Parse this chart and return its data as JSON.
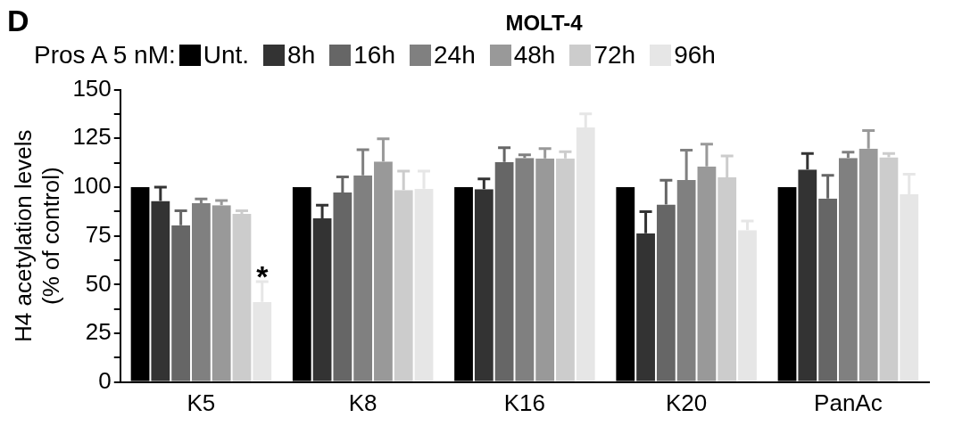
{
  "chart_data": {
    "type": "bar",
    "title": "MOLT-4",
    "ylabel": "H4 acetylation levels\n(% of control)",
    "legend_title": "Pros A 5 nM:",
    "legend": "top",
    "categories": [
      "K5",
      "K8",
      "K16",
      "K20",
      "PanAc"
    ],
    "series": [
      {
        "name": "Unt.",
        "color": "#000000",
        "values": [
          100,
          100,
          100,
          100,
          100
        ]
      },
      {
        "name": "8h",
        "color": "#333333",
        "values": [
          92.9,
          84,
          99,
          76.3,
          109
        ],
        "errors": [
          [
            92.9,
            100
          ],
          [
            84,
            90.8
          ],
          [
            99,
            104.2
          ],
          [
            76.3,
            87.4
          ],
          [
            109,
            117.3
          ]
        ]
      },
      {
        "name": "16h",
        "color": "#666666",
        "values": [
          80.5,
          97.3,
          112.9,
          91.1,
          94.2
        ],
        "errors": [
          [
            80.5,
            87.9
          ],
          [
            97.3,
            105.2
          ],
          [
            112.9,
            120.2
          ],
          [
            91.1,
            103.5
          ],
          [
            94.2,
            106
          ]
        ]
      },
      {
        "name": "24h",
        "color": "#808080",
        "values": [
          91.8,
          106,
          115,
          103.7,
          115
        ],
        "errors": [
          [
            91.8,
            94
          ],
          [
            106,
            119.2
          ],
          [
            115,
            116.6
          ],
          [
            103.7,
            119
          ],
          [
            115,
            117.9
          ]
        ]
      },
      {
        "name": "48h",
        "color": "#999999",
        "values": [
          90.8,
          113.1,
          114.7,
          110.6,
          119.8
        ],
        "errors": [
          [
            90.8,
            93.2
          ],
          [
            113.1,
            124.8
          ],
          [
            114.7,
            119.8
          ],
          [
            110.6,
            122.1
          ],
          [
            119.8,
            129
          ]
        ]
      },
      {
        "name": "72h",
        "color": "#cccccc",
        "values": [
          86.3,
          98.5,
          114.7,
          105,
          115.3
        ],
        "errors": [
          [
            86.3,
            87.9
          ],
          [
            98.5,
            108.2
          ],
          [
            114.7,
            118.2
          ],
          [
            105,
            116
          ],
          [
            115.3,
            117.3
          ]
        ]
      },
      {
        "name": "96h",
        "color": "#e6e6e6",
        "values": [
          41.1,
          99.2,
          130.6,
          77.9,
          96.3
        ],
        "value_labels": [
          "*",
          null,
          null,
          null,
          null
        ],
        "errors": [
          [
            41.1,
            51.5
          ],
          [
            99.2,
            108.2
          ],
          [
            130.6,
            137.6
          ],
          [
            77.9,
            82.6
          ],
          [
            96.3,
            106.6
          ]
        ]
      }
    ],
    "ylim": [
      0,
      150
    ],
    "yticks": [
      0,
      {
        "value": 12.5,
        "label": null
      },
      25,
      {
        "value": 37.5,
        "label": null
      },
      50,
      {
        "value": 62.5,
        "label": null
      },
      75,
      {
        "value": 87.5,
        "label": null
      },
      100,
      {
        "value": 112.5,
        "label": null
      },
      125,
      {
        "value": 137.5,
        "label": null
      },
      150
    ],
    "grid": false,
    "annotations": [
      "D"
    ]
  }
}
